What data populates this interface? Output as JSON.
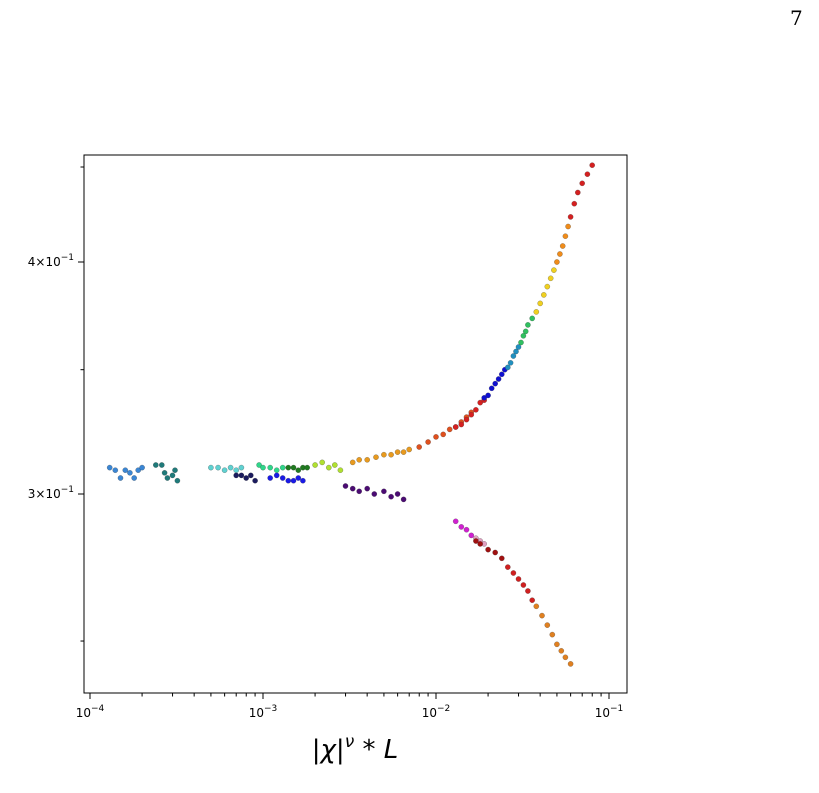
{
  "page": {
    "number": "7"
  },
  "chart_data": {
    "type": "scatter",
    "title": "",
    "xlabel": "|χ|^ν * L",
    "ylabel": "",
    "xscale": "log",
    "yscale": "log",
    "xlim": [
      0.0001,
      0.12
    ],
    "ylim": [
      0.25,
      0.45
    ],
    "xticks": [
      {
        "value": 0.0001,
        "base": "10",
        "exp": "−4"
      },
      {
        "value": 0.001,
        "base": "10",
        "exp": "−3"
      },
      {
        "value": 0.01,
        "base": "10",
        "exp": "−2"
      },
      {
        "value": 0.1,
        "base": "10",
        "exp": "−1"
      }
    ],
    "yticks": [
      {
        "value": 0.3,
        "mant": "3",
        "base": "10",
        "exp": "−1"
      },
      {
        "value": 0.4,
        "mant": "4",
        "base": "10",
        "exp": "−1"
      }
    ],
    "grid": false,
    "legend": "none",
    "series": [
      {
        "color": "#3a86d4",
        "points": [
          [
            0.00013,
            0.31
          ],
          [
            0.00014,
            0.309
          ],
          [
            0.00015,
            0.306
          ],
          [
            0.00016,
            0.309
          ],
          [
            0.00017,
            0.308
          ],
          [
            0.00018,
            0.306
          ],
          [
            0.00019,
            0.309
          ],
          [
            0.0002,
            0.31
          ]
        ]
      },
      {
        "color": "#1f7a7a",
        "points": [
          [
            0.00024,
            0.311
          ],
          [
            0.00026,
            0.311
          ],
          [
            0.00027,
            0.308
          ],
          [
            0.00028,
            0.306
          ],
          [
            0.0003,
            0.307
          ],
          [
            0.00031,
            0.309
          ],
          [
            0.00032,
            0.305
          ]
        ]
      },
      {
        "color": "#5fd1d1",
        "points": [
          [
            0.0005,
            0.31
          ],
          [
            0.00055,
            0.31
          ],
          [
            0.0006,
            0.309
          ],
          [
            0.00065,
            0.31
          ],
          [
            0.0007,
            0.309
          ],
          [
            0.00075,
            0.31
          ]
        ]
      },
      {
        "color": "#1b1b5e",
        "points": [
          [
            0.0007,
            0.307
          ],
          [
            0.00075,
            0.307
          ],
          [
            0.0008,
            0.306
          ],
          [
            0.00085,
            0.307
          ],
          [
            0.0009,
            0.305
          ]
        ]
      },
      {
        "color": "#2fd68a",
        "points": [
          [
            0.00095,
            0.311
          ],
          [
            0.001,
            0.31
          ],
          [
            0.0011,
            0.31
          ],
          [
            0.0012,
            0.309
          ],
          [
            0.0013,
            0.31
          ]
        ]
      },
      {
        "color": "#1a1ae6",
        "points": [
          [
            0.0011,
            0.306
          ],
          [
            0.0012,
            0.307
          ],
          [
            0.0013,
            0.306
          ],
          [
            0.0014,
            0.305
          ],
          [
            0.0015,
            0.305
          ],
          [
            0.0016,
            0.306
          ],
          [
            0.0017,
            0.305
          ]
        ]
      },
      {
        "color": "#1f7a1f",
        "points": [
          [
            0.0014,
            0.31
          ],
          [
            0.0015,
            0.31
          ],
          [
            0.0016,
            0.309
          ],
          [
            0.0017,
            0.31
          ],
          [
            0.0018,
            0.31
          ]
        ]
      },
      {
        "color": "#b0e030",
        "points": [
          [
            0.002,
            0.311
          ],
          [
            0.0022,
            0.312
          ],
          [
            0.0024,
            0.31
          ],
          [
            0.0026,
            0.311
          ],
          [
            0.0028,
            0.309
          ]
        ]
      },
      {
        "color": "#4b0b73",
        "points": [
          [
            0.003,
            0.303
          ],
          [
            0.0033,
            0.302
          ],
          [
            0.0036,
            0.301
          ],
          [
            0.004,
            0.302
          ],
          [
            0.0044,
            0.3
          ],
          [
            0.005,
            0.301
          ],
          [
            0.0055,
            0.299
          ],
          [
            0.006,
            0.3
          ],
          [
            0.0065,
            0.298
          ]
        ]
      },
      {
        "color": "#e89a1e",
        "points": [
          [
            0.0033,
            0.312
          ],
          [
            0.0036,
            0.313
          ],
          [
            0.004,
            0.313
          ],
          [
            0.0045,
            0.314
          ],
          [
            0.005,
            0.315
          ],
          [
            0.0055,
            0.315
          ],
          [
            0.006,
            0.316
          ],
          [
            0.0065,
            0.316
          ],
          [
            0.007,
            0.317
          ]
        ]
      },
      {
        "color": "#e0501e",
        "points": [
          [
            0.008,
            0.318
          ],
          [
            0.009,
            0.32
          ],
          [
            0.01,
            0.322
          ],
          [
            0.011,
            0.323
          ],
          [
            0.012,
            0.325
          ],
          [
            0.013,
            0.326
          ],
          [
            0.014,
            0.328
          ],
          [
            0.015,
            0.33
          ],
          [
            0.016,
            0.332
          ]
        ]
      },
      {
        "color": "#d62020",
        "points": [
          [
            0.013,
            0.326
          ],
          [
            0.014,
            0.327
          ],
          [
            0.015,
            0.329
          ],
          [
            0.016,
            0.331
          ],
          [
            0.017,
            0.333
          ],
          [
            0.018,
            0.336
          ],
          [
            0.019,
            0.337
          ]
        ]
      },
      {
        "color": "#1010d0",
        "points": [
          [
            0.019,
            0.338
          ],
          [
            0.02,
            0.339
          ],
          [
            0.021,
            0.342
          ],
          [
            0.022,
            0.344
          ],
          [
            0.023,
            0.346
          ],
          [
            0.024,
            0.348
          ],
          [
            0.025,
            0.35
          ]
        ]
      },
      {
        "color": "#2090c0",
        "points": [
          [
            0.026,
            0.351
          ],
          [
            0.027,
            0.353
          ],
          [
            0.028,
            0.356
          ],
          [
            0.029,
            0.358
          ],
          [
            0.03,
            0.36
          ]
        ]
      },
      {
        "color": "#30c060",
        "points": [
          [
            0.031,
            0.362
          ],
          [
            0.032,
            0.365
          ],
          [
            0.033,
            0.367
          ],
          [
            0.034,
            0.37
          ],
          [
            0.036,
            0.373
          ]
        ]
      },
      {
        "color": "#f0d020",
        "points": [
          [
            0.038,
            0.376
          ],
          [
            0.04,
            0.38
          ],
          [
            0.042,
            0.384
          ],
          [
            0.044,
            0.388
          ],
          [
            0.046,
            0.392
          ],
          [
            0.048,
            0.396
          ]
        ]
      },
      {
        "color": "#f08c1a",
        "points": [
          [
            0.05,
            0.4
          ],
          [
            0.052,
            0.404
          ],
          [
            0.054,
            0.408
          ],
          [
            0.056,
            0.413
          ],
          [
            0.058,
            0.418
          ]
        ]
      },
      {
        "color": "#d42020",
        "points": [
          [
            0.06,
            0.423
          ],
          [
            0.063,
            0.43
          ],
          [
            0.066,
            0.436
          ],
          [
            0.07,
            0.441
          ],
          [
            0.075,
            0.446
          ],
          [
            0.08,
            0.451
          ],
          [
            0.085,
            0.457
          ]
        ]
      },
      {
        "color": "#d020d0",
        "points": [
          [
            0.013,
            0.29
          ],
          [
            0.014,
            0.288
          ],
          [
            0.015,
            0.287
          ],
          [
            0.016,
            0.285
          ]
        ]
      },
      {
        "color": "#e0a0c0",
        "points": [
          [
            0.017,
            0.284
          ],
          [
            0.018,
            0.283
          ],
          [
            0.019,
            0.282
          ]
        ]
      },
      {
        "color": "#a01010",
        "points": [
          [
            0.017,
            0.283
          ],
          [
            0.018,
            0.282
          ],
          [
            0.02,
            0.28
          ],
          [
            0.022,
            0.279
          ],
          [
            0.024,
            0.277
          ]
        ]
      },
      {
        "color": "#d02020",
        "points": [
          [
            0.026,
            0.274
          ],
          [
            0.028,
            0.272
          ],
          [
            0.03,
            0.27
          ],
          [
            0.032,
            0.268
          ],
          [
            0.034,
            0.266
          ],
          [
            0.036,
            0.263
          ]
        ]
      },
      {
        "color": "#e08020",
        "points": [
          [
            0.038,
            0.261
          ],
          [
            0.041,
            0.258
          ],
          [
            0.044,
            0.255
          ],
          [
            0.047,
            0.252
          ],
          [
            0.05,
            0.249
          ],
          [
            0.053,
            0.247
          ],
          [
            0.056,
            0.245
          ],
          [
            0.06,
            0.243
          ]
        ]
      }
    ]
  }
}
